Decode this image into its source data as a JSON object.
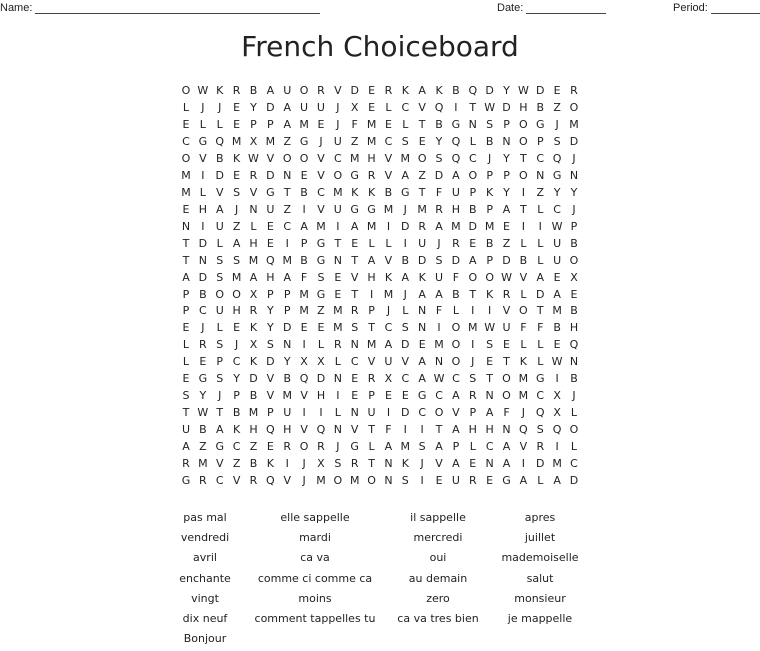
{
  "header": {
    "name_label": "Name:",
    "date_label": "Date:",
    "period_label": "Period:"
  },
  "title": "French Choiceboard",
  "grid": [
    "OWKRBAUORVDERKAKBQDYWDER",
    "LJJEYDAUUJXELCVQITWDHBZO",
    "ELLEPPAMEJFMELTBGNSPOGJM",
    "CGQMXMZGJUZMCSEYQLBNOPSD",
    "OVBKWVOOVCMHVMOSQCJYTCQJ",
    "MIDERDNEVOGRVAZDAOPPONGN",
    "MLVSVGTBCMKKBGTFUPKYIZYY",
    "EHAJNUZIVUGGMJMRHBPATLCJ",
    "NIUZLECAMIAMIDRAMDMEIIWP",
    "TDLAHEIPGTELLIUJREBZLLUB",
    "TNSSMQMBGNTAVBDSDAPDBLUO",
    "ADSMAHAFSEVHKAKUFOOWVAEX",
    "PBOOXPPMGETIMJAABTKRLDAE",
    "PCUHRYPMZMRPJLNFLIIVOTMB",
    "EJLEKYDEEMSTCSNIOMWUFFBH",
    "LRSJXSNILRNMADEMOISELLEQ",
    "LEPCKDYXXLCVUVANOJETKLWN",
    "EGSYDVBQDNERXCAWCSTOMGIB",
    "SYJPBVMVHIEPEEGCARNOMCXJ",
    "TWTBMPUIILNUIDCOVPAFJQXL",
    "UBAKHQHVQNVTFIITAHHNQSQO",
    "AZGCZERORJGLAMSAPLCAVRIL",
    "RMVZBKIJXSRTNKJVAENAIDMC",
    "GRCVRQVJMOMONSIEUREGALAD"
  ],
  "words": [
    [
      "pas mal",
      "elle sappelle",
      "il sappelle",
      "apres"
    ],
    [
      "vendredi",
      "mardi",
      "mercredi",
      "juillet"
    ],
    [
      "avril",
      "ca va",
      "oui",
      "mademoiselle"
    ],
    [
      "enchante",
      "comme ci comme ca",
      "au demain",
      "salut"
    ],
    [
      "vingt",
      "moins",
      "zero",
      "monsieur"
    ],
    [
      "dix neuf",
      "comment tappelles tu",
      "ca va tres bien",
      "je mappelle"
    ],
    [
      "Bonjour"
    ]
  ]
}
